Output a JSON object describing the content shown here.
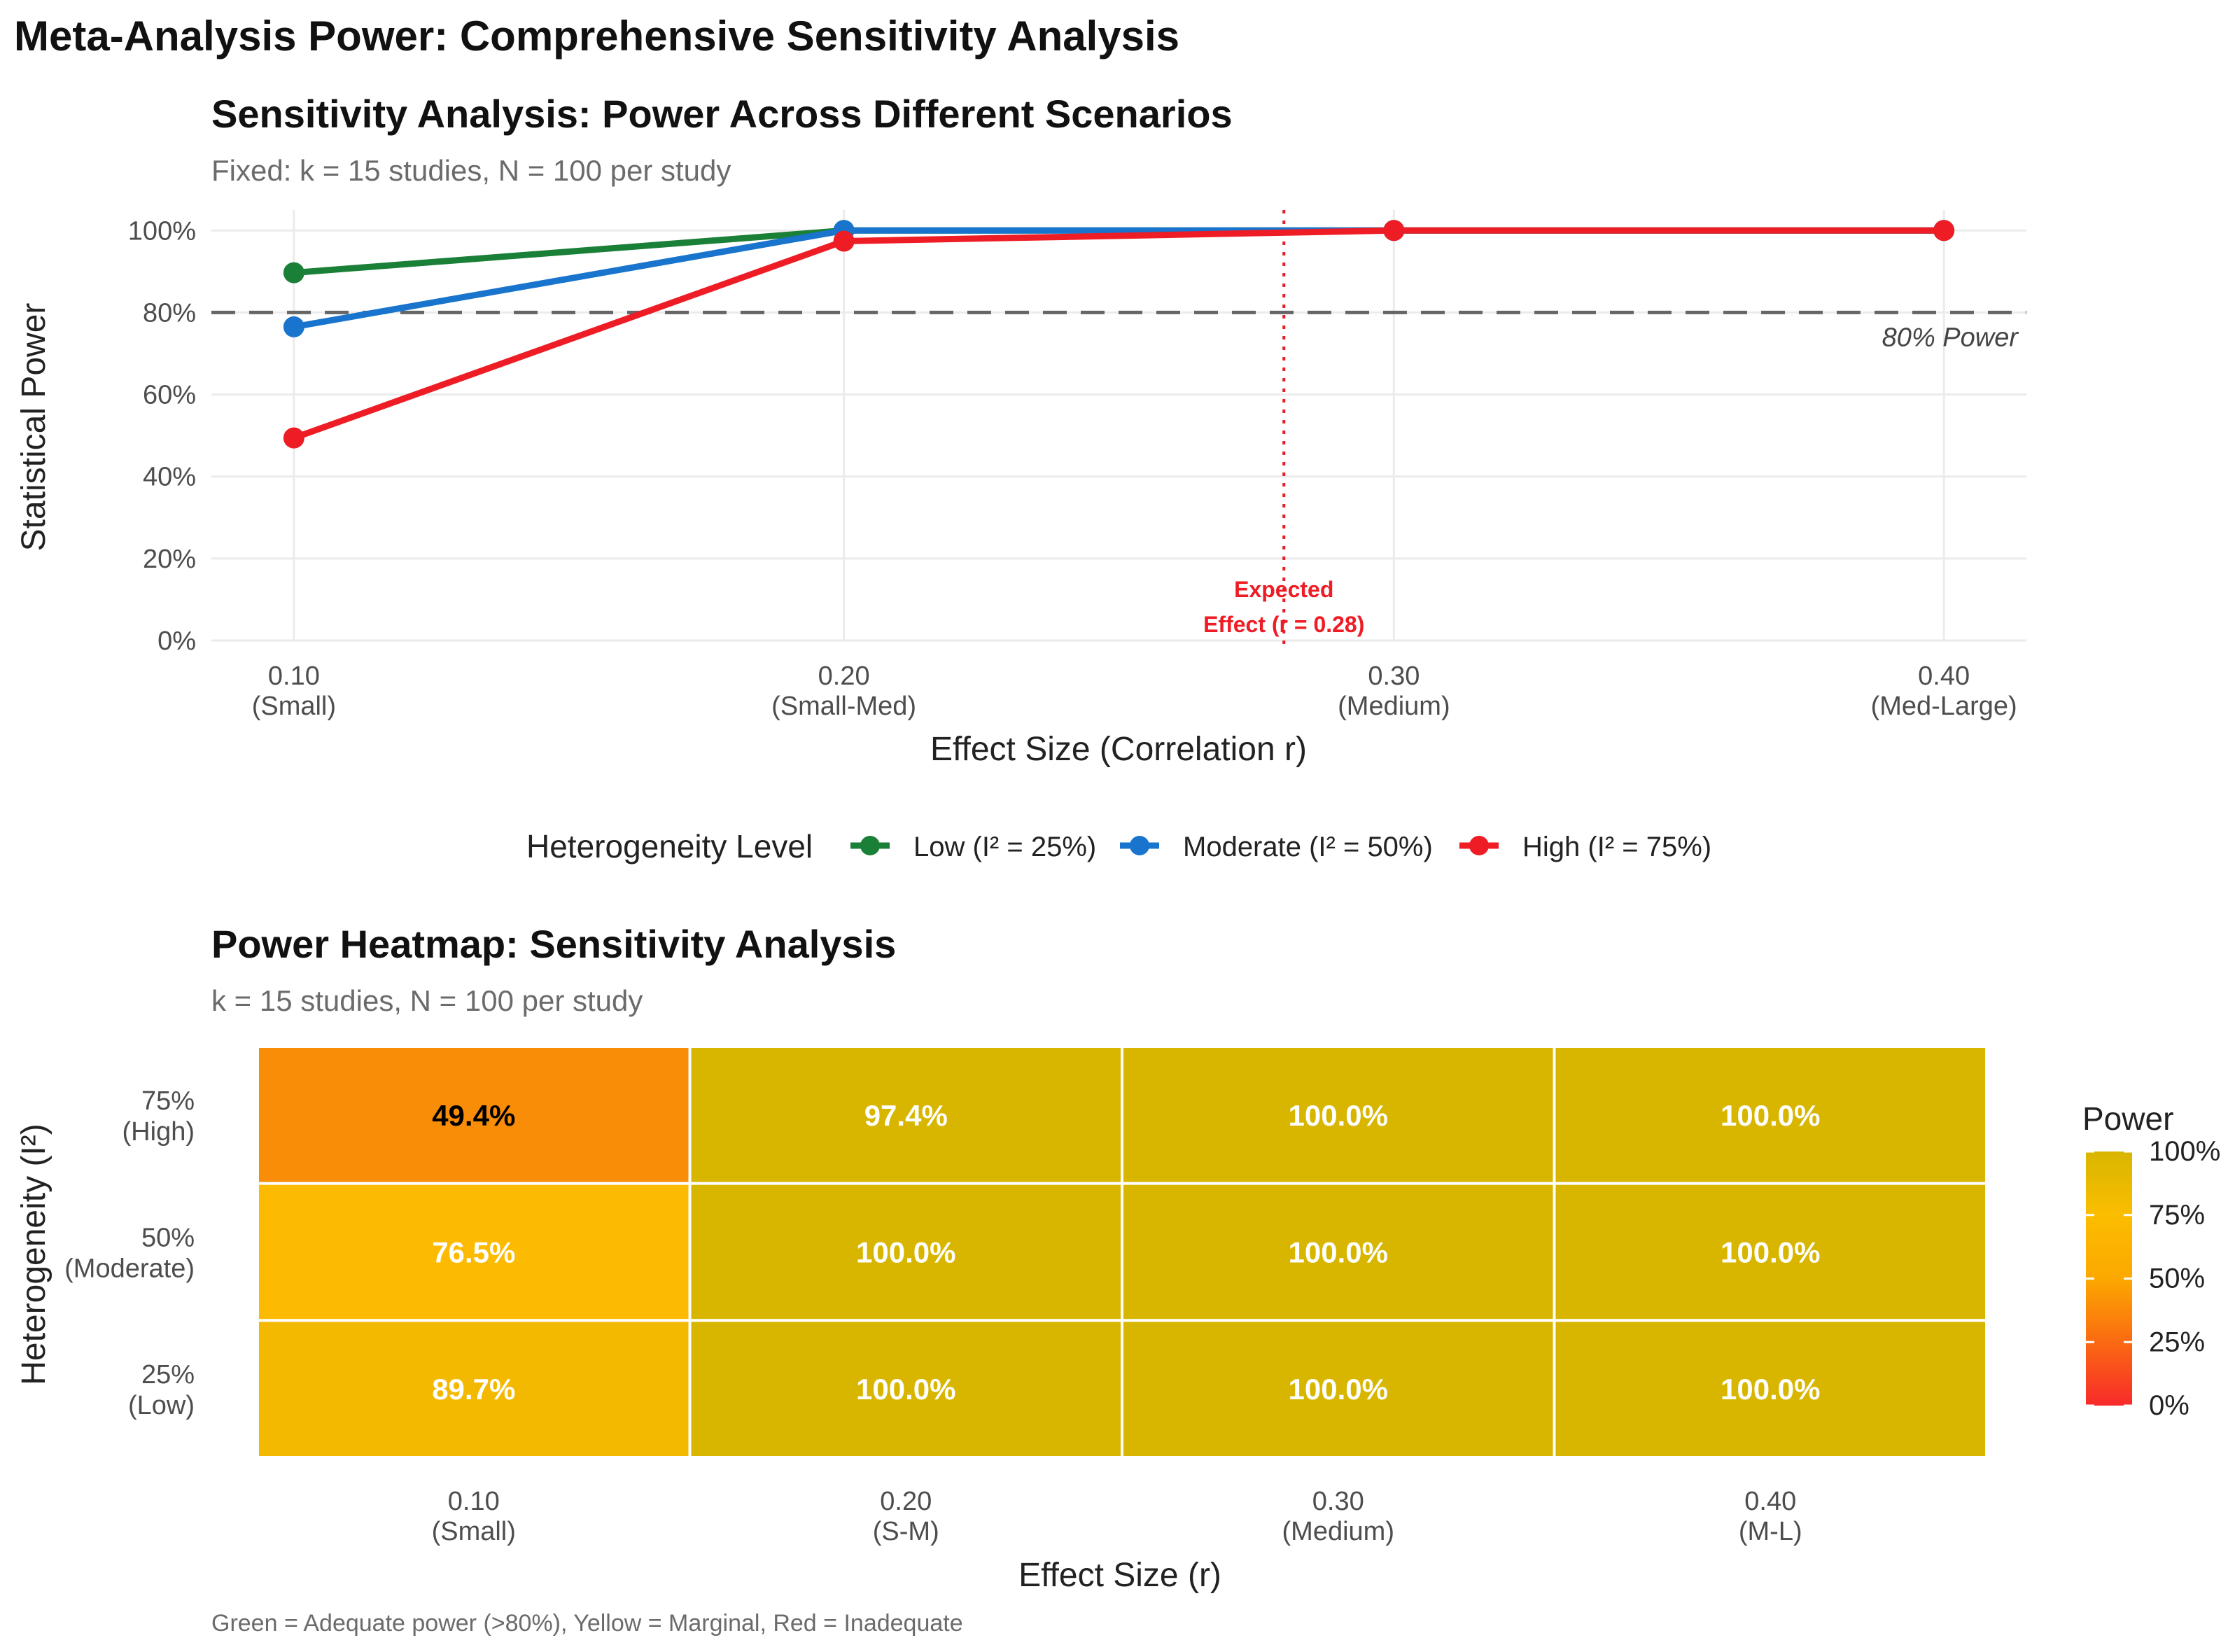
{
  "main_title": "Meta-Analysis Power: Comprehensive Sensitivity Analysis",
  "caption": "Green = Adequate power (>80%), Yellow = Marginal, Red = Inadequate",
  "chart_data": [
    {
      "type": "line",
      "title": "Sensitivity Analysis: Power Across Different Scenarios",
      "subtitle": "Fixed: k = 15 studies, N = 100 per study",
      "xlabel": "Effect Size (Correlation r)",
      "ylabel": "Statistical Power",
      "x": [
        0.1,
        0.2,
        0.3,
        0.4
      ],
      "x_tick_labels": [
        [
          "0.10",
          "(Small)"
        ],
        [
          "0.20",
          "(Small-Med)"
        ],
        [
          "0.30",
          "(Medium)"
        ],
        [
          "0.40",
          "(Med-Large)"
        ]
      ],
      "xlim": [
        0.085,
        0.415
      ],
      "ylim": [
        0,
        1.05
      ],
      "y_ticks": [
        0,
        0.2,
        0.4,
        0.6,
        0.8,
        1.0
      ],
      "y_tick_labels": [
        "0%",
        "20%",
        "40%",
        "60%",
        "80%",
        "100%"
      ],
      "grid": true,
      "legend_position": "bottom",
      "legend_title": "Heterogeneity Level",
      "series": [
        {
          "name": "Low (I² = 25%)",
          "color": "#1a7f37",
          "values": [
            0.897,
            1.0,
            1.0,
            1.0
          ]
        },
        {
          "name": "Moderate (I² = 50%)",
          "color": "#1874cd",
          "values": [
            0.765,
            1.0,
            1.0,
            1.0
          ]
        },
        {
          "name": "High (I² = 75%)",
          "color": "#ee1c25",
          "values": [
            0.494,
            0.974,
            1.0,
            1.0
          ]
        }
      ],
      "reference_line": {
        "y": 0.8,
        "label": "80% Power",
        "color": "#666666"
      },
      "expected_effect": {
        "x": 0.28,
        "label_lines": [
          "Expected",
          "Effect (r = 0.28)"
        ],
        "color": "#ee1c25"
      }
    },
    {
      "type": "heatmap",
      "title": "Power Heatmap: Sensitivity Analysis",
      "subtitle": "k = 15 studies, N = 100 per study",
      "xlabel": "Effect Size (r)",
      "ylabel": "Heterogeneity (I²)",
      "x_categories": [
        [
          "0.10",
          "(Small)"
        ],
        [
          "0.20",
          "(S-M)"
        ],
        [
          "0.30",
          "(Medium)"
        ],
        [
          "0.40",
          "(M-L)"
        ]
      ],
      "y_categories": [
        [
          "75%",
          "(High)"
        ],
        [
          "50%",
          "(Moderate)"
        ],
        [
          "25%",
          "(Low)"
        ]
      ],
      "values": [
        [
          49.4,
          97.4,
          100.0,
          100.0
        ],
        [
          76.5,
          100.0,
          100.0,
          100.0
        ],
        [
          89.7,
          100.0,
          100.0,
          100.0
        ]
      ],
      "cell_labels": [
        [
          "49.4%",
          "97.4%",
          "100.0%",
          "100.0%"
        ],
        [
          "76.5%",
          "100.0%",
          "100.0%",
          "100.0%"
        ],
        [
          "89.7%",
          "100.0%",
          "100.0%",
          "100.0%"
        ]
      ],
      "cell_colors": [
        [
          "#fa8d08",
          "#d8b600",
          "#d8b600",
          "#d8b600"
        ],
        [
          "#fcba00",
          "#d8b600",
          "#d8b600",
          "#d8b600"
        ],
        [
          "#f3b900",
          "#d8b600",
          "#d8b600",
          "#d8b600"
        ]
      ],
      "label_colors": [
        [
          "#000000",
          "#ffffff",
          "#ffffff",
          "#ffffff"
        ],
        [
          "#ffffff",
          "#ffffff",
          "#ffffff",
          "#ffffff"
        ],
        [
          "#ffffff",
          "#ffffff",
          "#ffffff",
          "#ffffff"
        ]
      ],
      "colorbar": {
        "title": "Power",
        "range": [
          0,
          100
        ],
        "ticks": [
          0,
          25,
          50,
          75,
          100
        ],
        "tick_labels": [
          "0%",
          "25%",
          "50%",
          "75%",
          "100%"
        ],
        "gradient_stops": [
          "#f72a2a",
          "#fa6a12",
          "#fca800",
          "#fbbd00",
          "#d8b600"
        ]
      }
    }
  ]
}
